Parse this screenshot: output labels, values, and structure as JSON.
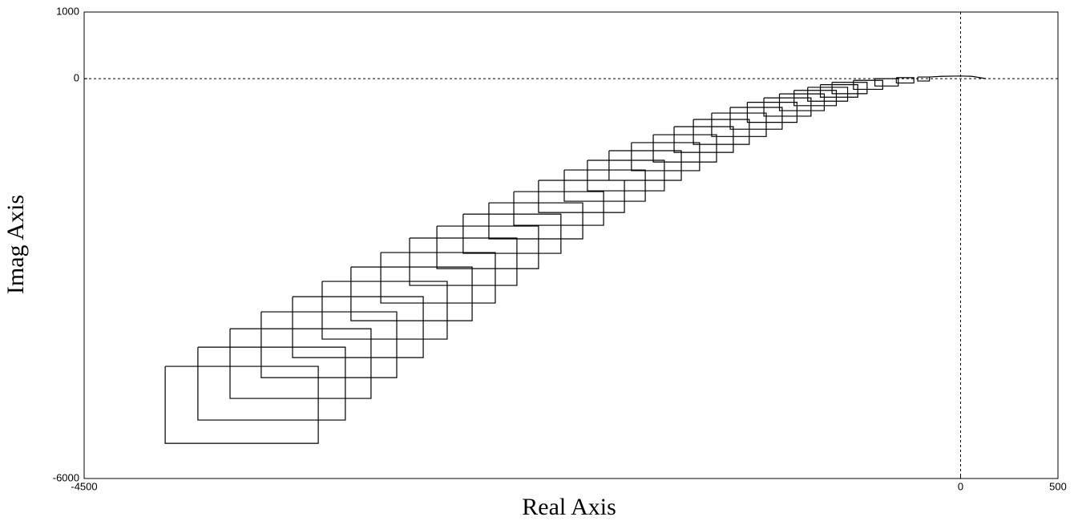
{
  "chart_data": {
    "type": "line",
    "x_label": "Real Axis",
    "y_label": "Imag Axis",
    "xlim": [
      -4500,
      500
    ],
    "xticks": [
      -4500,
      0,
      500
    ],
    "ylim": [
      -6000,
      1000
    ],
    "yticks": [
      1000,
      0,
      -6000
    ],
    "zero_lines": true,
    "color": "#000000",
    "x": [
      -4084,
      -3298,
      -3298,
      -4084,
      -4084,
      null,
      -3916,
      -3159,
      -3159,
      -3916,
      -3916,
      null,
      -3751,
      -3027,
      -3027,
      -3751,
      -3751,
      null,
      -3591,
      -2895,
      -2895,
      -3591,
      -3591,
      null,
      -3430,
      -2759,
      -2759,
      -3430,
      -3430,
      null,
      -3278,
      -2636,
      -2636,
      -3278,
      -3278,
      null,
      -3130,
      -2508,
      -2508,
      -3130,
      -3130,
      null,
      -2977,
      -2389,
      -2389,
      -2977,
      -2977,
      null,
      -2829,
      -2278,
      -2278,
      -2829,
      -2829,
      null,
      -2689,
      -2167,
      -2167,
      -2689,
      -2689,
      null,
      -2554,
      -2052,
      -2052,
      -2554,
      -2554,
      null,
      -2422,
      -1940,
      -1940,
      -2422,
      -2422,
      null,
      -2294,
      -1833,
      -1833,
      -2294,
      -2294,
      null,
      -2167,
      -1726,
      -1726,
      -2167,
      -2167,
      null,
      -2035,
      -1619,
      -1619,
      -2035,
      -2035,
      null,
      -1916,
      -1521,
      -1521,
      -1916,
      -1916,
      null,
      -1805,
      -1434,
      -1434,
      -1805,
      -1805,
      null,
      -1690,
      -1340,
      -1340,
      -1690,
      -1690,
      null,
      -1578,
      -1253,
      -1253,
      -1578,
      -1578,
      null,
      -1471,
      -1167,
      -1167,
      -1471,
      -1471,
      null,
      -1372,
      -1085,
      -1085,
      -1372,
      -1372,
      null,
      -1278,
      -998,
      -998,
      -1278,
      -1278,
      null,
      -1183,
      -916,
      -916,
      -1183,
      -1183,
      null,
      -1095,
      -840,
      -840,
      -1095,
      -1095,
      null,
      -1010,
      -768,
      -768,
      -1010,
      -1010,
      null,
      -930,
      -700,
      -700,
      -930,
      -930,
      null,
      -855,
      -638,
      -638,
      -855,
      -855,
      null,
      -785,
      -580,
      -580,
      -785,
      -785,
      null,
      -720,
      -528,
      -528,
      -720,
      -720,
      null,
      -660,
      -480,
      -480,
      -660,
      -660,
      null,
      -550,
      -400,
      -400,
      -550,
      -550,
      null,
      -440,
      -320,
      -320,
      -440,
      -440,
      null,
      -330,
      -240,
      -240,
      -330,
      -330,
      null,
      -220,
      -160,
      -160,
      -220,
      -220,
      null,
      -160,
      -100,
      0,
      60,
      130
    ],
    "y": [
      -4317,
      -4317,
      -5472,
      -5472,
      -4317,
      null,
      -4029,
      -4029,
      -5123,
      -5123,
      -4029,
      null,
      -3752,
      -3752,
      -4798,
      -4798,
      -3752,
      null,
      -3499,
      -3499,
      -4486,
      -4486,
      -3499,
      null,
      -3271,
      -3271,
      -4185,
      -4185,
      -3271,
      null,
      -3042,
      -3042,
      -3908,
      -3908,
      -3042,
      null,
      -2826,
      -2826,
      -3632,
      -3632,
      -2826,
      null,
      -2609,
      -2609,
      -3367,
      -3367,
      -2609,
      null,
      -2392,
      -2392,
      -3102,
      -3102,
      -2392,
      null,
      -2212,
      -2212,
      -2850,
      -2850,
      -2212,
      null,
      -2032,
      -2032,
      -2621,
      -2621,
      -2032,
      null,
      -1863,
      -1863,
      -2404,
      -2404,
      -1863,
      null,
      -1695,
      -1695,
      -2200,
      -2200,
      -1695,
      null,
      -1526,
      -1526,
      -2008,
      -2008,
      -1526,
      null,
      -1370,
      -1370,
      -1839,
      -1839,
      -1370,
      null,
      -1225,
      -1225,
      -1683,
      -1683,
      -1225,
      null,
      -1081,
      -1081,
      -1526,
      -1526,
      -1081,
      null,
      -960,
      -960,
      -1381,
      -1381,
      -960,
      null,
      -841,
      -841,
      -1251,
      -1251,
      -841,
      null,
      -720,
      -720,
      -1106,
      -1106,
      -720,
      null,
      -612,
      -612,
      -986,
      -986,
      -612,
      null,
      -516,
      -516,
      -868,
      -868,
      -516,
      null,
      -431,
      -431,
      -758,
      -758,
      -431,
      null,
      -355,
      -355,
      -655,
      -655,
      -355,
      null,
      -288,
      -288,
      -563,
      -563,
      -288,
      null,
      -228,
      -228,
      -480,
      -480,
      -228,
      null,
      -176,
      -176,
      -405,
      -405,
      -176,
      null,
      -130,
      -130,
      -338,
      -338,
      -130,
      null,
      -90,
      -90,
      -278,
      -278,
      -90,
      null,
      -55,
      -55,
      -225,
      -225,
      -55,
      null,
      -25,
      -25,
      -160,
      -160,
      -25,
      null,
      0,
      0,
      -110,
      -110,
      0,
      null,
      15,
      15,
      -65,
      -65,
      15,
      null,
      25,
      25,
      -35,
      -35,
      25,
      null,
      25,
      35,
      40,
      35,
      0
    ]
  }
}
